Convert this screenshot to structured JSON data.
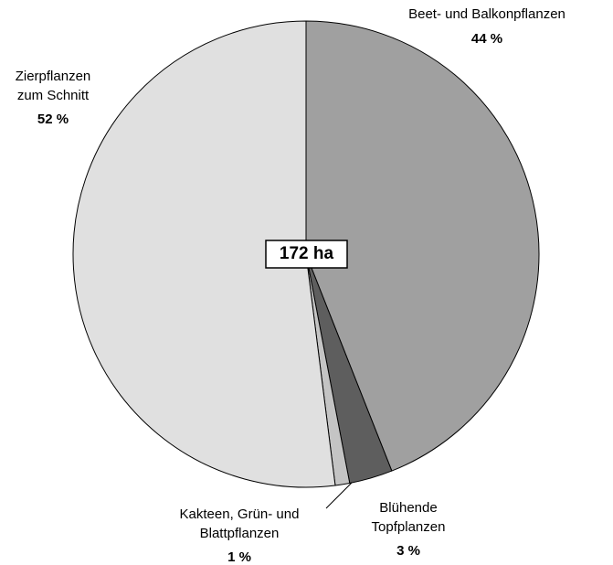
{
  "chart_data": {
    "type": "pie",
    "categories": [
      "Beet- und Balkonpflanzen",
      "Blühende\nTopfplanzen",
      "Kakteen, Grün- und\nBlattpflanzen",
      "Zierpflanzen\nzum Schnitt"
    ],
    "values": [
      44,
      3,
      1,
      52
    ],
    "value_labels": [
      "44 %",
      "3 %",
      "1 %",
      "52 %"
    ],
    "colors": [
      "#a0a0a0",
      "#5e5e5e",
      "#c4c4c4",
      "#e0e0e0"
    ],
    "center_label": "172 ha"
  }
}
